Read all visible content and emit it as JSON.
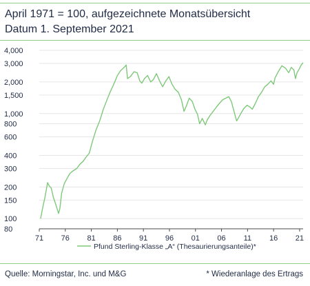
{
  "header": {
    "title_line1": "April 1971 = 100, aufgezeichnete Monatsübersicht",
    "title_line2": "Datum 1. September 2021"
  },
  "footer": {
    "source": "Quelle: Morningstar, Inc. und M&G",
    "footnote": "* Wiederanlage des Ertrags"
  },
  "colors": {
    "series": "#7fc87a",
    "rule": "#8fcf8a",
    "text": "#1f2a44",
    "grid": "#e6e6e6"
  },
  "chart_data": {
    "type": "line",
    "title": "April 1971 = 100, aufgezeichnete Monatsübersicht",
    "subtitle": "Datum 1. September 2021",
    "xlabel": "",
    "ylabel": "",
    "y_scale": "log",
    "ylim": [
      80,
      4000
    ],
    "xlim": [
      1971,
      2021.67
    ],
    "grid": true,
    "legend": "bottom",
    "x_ticks": [
      {
        "value": 1971,
        "label": "71"
      },
      {
        "value": 1976,
        "label": "76"
      },
      {
        "value": 1981,
        "label": "81"
      },
      {
        "value": 1986,
        "label": "86"
      },
      {
        "value": 1991,
        "label": "91"
      },
      {
        "value": 1996,
        "label": "96"
      },
      {
        "value": 2001,
        "label": "01"
      },
      {
        "value": 2006,
        "label": "06"
      },
      {
        "value": 2011,
        "label": "11"
      },
      {
        "value": 2016,
        "label": "16"
      },
      {
        "value": 2021,
        "label": "21"
      }
    ],
    "y_ticks": [
      {
        "value": 4000,
        "label": "4,000"
      },
      {
        "value": 3000,
        "label": "3,000"
      },
      {
        "value": 2000,
        "label": "2,000"
      },
      {
        "value": 1500,
        "label": "1,500"
      },
      {
        "value": 1000,
        "label": "1,000"
      },
      {
        "value": 800,
        "label": "800"
      },
      {
        "value": 600,
        "label": "600"
      },
      {
        "value": 400,
        "label": "400"
      },
      {
        "value": 300,
        "label": "300"
      },
      {
        "value": 200,
        "label": "200"
      },
      {
        "value": 150,
        "label": "150"
      },
      {
        "value": 100,
        "label": "100"
      },
      {
        "value": 80,
        "label": "80"
      }
    ],
    "series": [
      {
        "name": "Pfund Sterling-Klasse „A“ (Thesaurierungsanteile)*",
        "x": [
          1971.25,
          1971.7,
          1972.1,
          1972.6,
          1972.9,
          1973.3,
          1973.7,
          1974.2,
          1974.7,
          1974.95,
          1975.3,
          1975.8,
          1976.3,
          1976.9,
          1977.5,
          1978.2,
          1978.8,
          1979.4,
          1979.9,
          1980.6,
          1981.2,
          1981.9,
          1982.6,
          1983.3,
          1984.0,
          1984.6,
          1985.3,
          1986.0,
          1986.6,
          1987.3,
          1987.7,
          1987.95,
          1988.5,
          1989.2,
          1989.8,
          1990.3,
          1990.7,
          1991.2,
          1991.8,
          1992.4,
          1992.9,
          1993.5,
          1994.1,
          1994.7,
          1995.3,
          1995.9,
          1996.5,
          1997.1,
          1997.7,
          1998.3,
          1998.8,
          1999.3,
          1999.8,
          2000.4,
          2000.9,
          2001.4,
          2001.8,
          2002.3,
          2002.9,
          2003.2,
          2003.8,
          2004.4,
          2005.0,
          2005.6,
          2006.2,
          2006.8,
          2007.4,
          2007.9,
          2008.4,
          2008.9,
          2009.2,
          2009.7,
          2010.3,
          2010.9,
          2011.5,
          2011.9,
          2012.5,
          2013.1,
          2013.7,
          2014.3,
          2014.9,
          2015.5,
          2016.0,
          2016.3,
          2016.9,
          2017.6,
          2018.3,
          2018.9,
          2019.4,
          2019.9,
          2020.2,
          2020.5,
          2020.9,
          2021.3,
          2021.67
        ],
        "values": [
          100,
          130,
          160,
          220,
          205,
          195,
          160,
          135,
          112,
          125,
          175,
          215,
          240,
          270,
          285,
          300,
          330,
          350,
          380,
          420,
          540,
          700,
          850,
          1100,
          1350,
          1600,
          1900,
          2300,
          2550,
          2750,
          2900,
          2150,
          2250,
          2500,
          2450,
          2050,
          1950,
          2150,
          2300,
          2000,
          2100,
          2400,
          2050,
          1800,
          2050,
          2250,
          1900,
          1700,
          1600,
          1350,
          1050,
          1200,
          1400,
          1300,
          1100,
          980,
          800,
          900,
          780,
          860,
          960,
          1050,
          1150,
          1250,
          1350,
          1400,
          1450,
          1300,
          1050,
          850,
          900,
          1000,
          1120,
          1200,
          1150,
          1100,
          1250,
          1450,
          1600,
          1800,
          1900,
          2050,
          1900,
          2200,
          2500,
          2850,
          2700,
          2450,
          2750,
          2600,
          2150,
          2450,
          2650,
          2900,
          3050
        ]
      }
    ]
  }
}
